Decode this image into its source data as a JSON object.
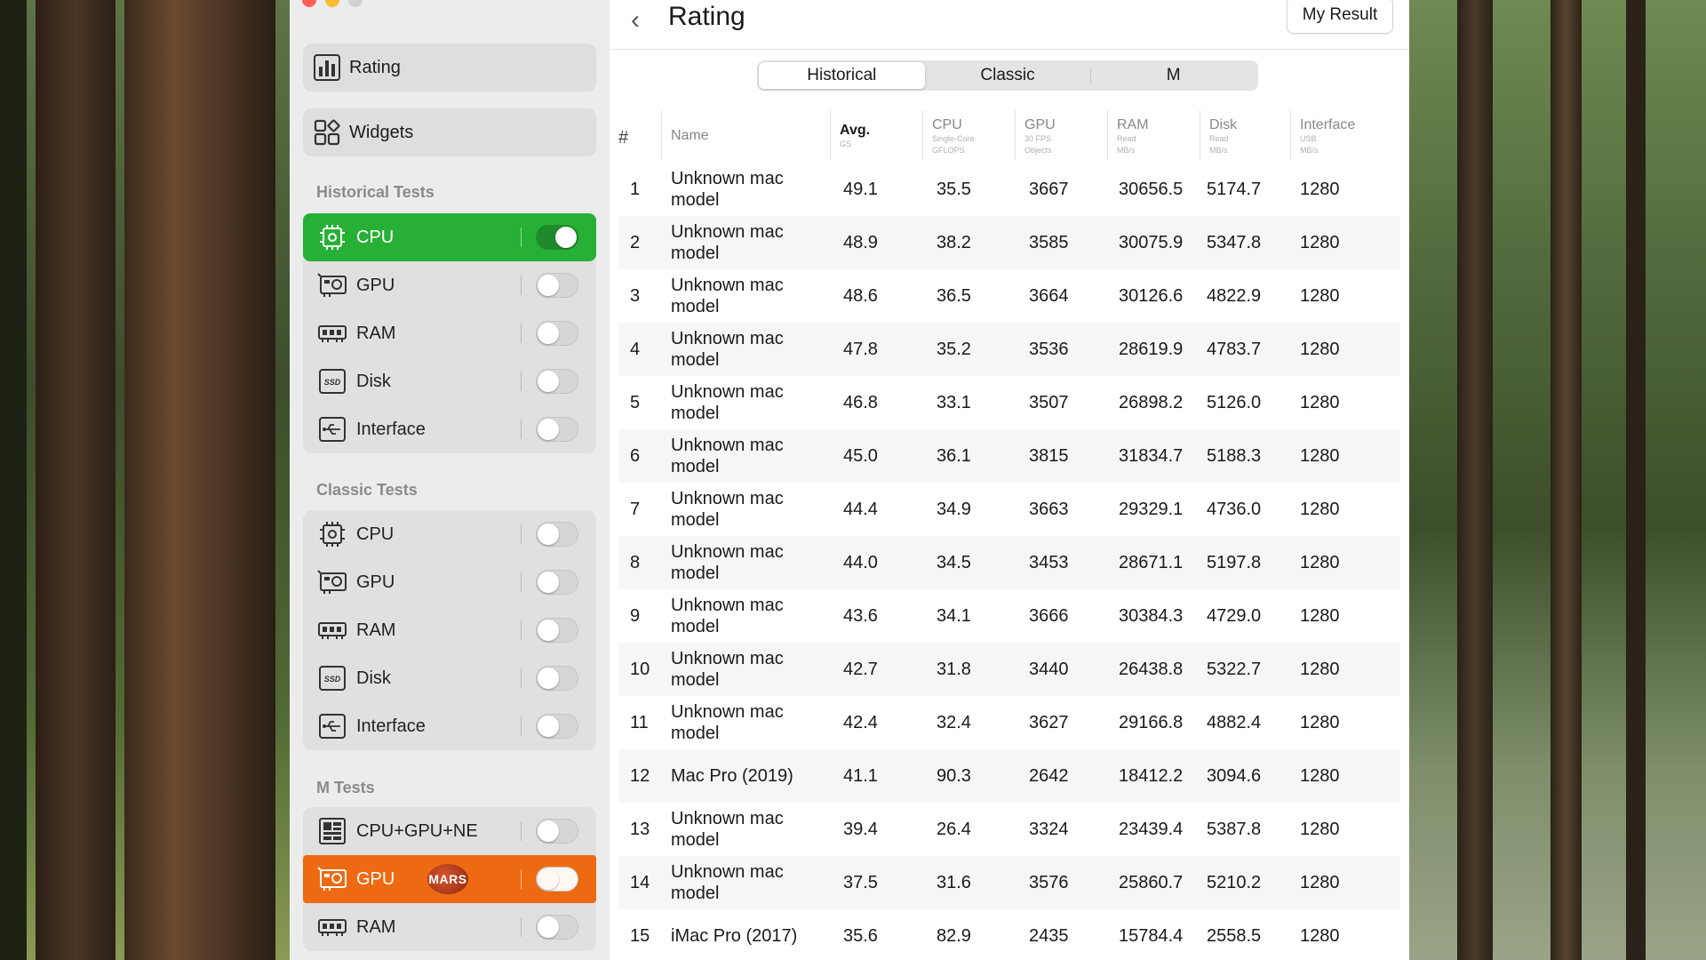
{
  "window": {
    "title": "Rating"
  },
  "sidebar": {
    "nav": [
      {
        "label": "Rating",
        "icon": "bar-chart-icon"
      },
      {
        "label": "Widgets",
        "icon": "widgets-grid-icon"
      }
    ],
    "sections": [
      {
        "title": "Historical Tests",
        "items": [
          {
            "label": "CPU",
            "icon": "cpu-icon",
            "on": true
          },
          {
            "label": "GPU",
            "icon": "gpu-icon",
            "on": false
          },
          {
            "label": "RAM",
            "icon": "ram-icon",
            "on": false
          },
          {
            "label": "Disk",
            "icon": "ssd-icon",
            "on": false
          },
          {
            "label": "Interface",
            "icon": "usb-icon",
            "on": false
          }
        ]
      },
      {
        "title": "Classic Tests",
        "items": [
          {
            "label": "CPU",
            "icon": "cpu-icon",
            "on": false
          },
          {
            "label": "GPU",
            "icon": "gpu-icon",
            "on": false
          },
          {
            "label": "RAM",
            "icon": "ram-icon",
            "on": false
          },
          {
            "label": "Disk",
            "icon": "ssd-icon",
            "on": false
          },
          {
            "label": "Interface",
            "icon": "usb-icon",
            "on": false
          }
        ]
      },
      {
        "title": "M Tests",
        "items": [
          {
            "label": "CPU+GPU+NE",
            "icon": "chip-grid-icon",
            "on": false
          },
          {
            "label": "GPU",
            "icon": "gpu-icon",
            "on": false,
            "badge": "MARS"
          },
          {
            "label": "RAM",
            "icon": "ram-icon",
            "on": false
          }
        ]
      }
    ]
  },
  "header": {
    "back_label": "‹",
    "title": "Rating",
    "my_result": "My Result"
  },
  "tabs": [
    {
      "label": "Historical",
      "selected": true
    },
    {
      "label": "Classic",
      "selected": false
    },
    {
      "label": "M",
      "selected": false
    }
  ],
  "columns": {
    "hash": "#",
    "name": "Name",
    "avg": {
      "label": "Avg.",
      "sub": "GS"
    },
    "cpu": {
      "label": "CPU",
      "sub1": "Single-Core",
      "sub2": "GFLOPS"
    },
    "gpu": {
      "label": "GPU",
      "sub1": "30 FPS",
      "sub2": "Objects"
    },
    "ram": {
      "label": "RAM",
      "sub1": "Read",
      "sub2": "MB/s"
    },
    "disk": {
      "label": "Disk",
      "sub1": "Read",
      "sub2": "MB/s"
    },
    "iface": {
      "label": "Interface",
      "sub1": "USB",
      "sub2": "MB/s"
    }
  },
  "rows": [
    {
      "n": "1",
      "name": "Unknown mac model",
      "avg": "49.1",
      "cpu": "35.5",
      "gpu": "3667",
      "ram": "30656.5",
      "disk": "5174.7",
      "iface": "1280"
    },
    {
      "n": "2",
      "name": "Unknown mac model",
      "avg": "48.9",
      "cpu": "38.2",
      "gpu": "3585",
      "ram": "30075.9",
      "disk": "5347.8",
      "iface": "1280"
    },
    {
      "n": "3",
      "name": "Unknown mac model",
      "avg": "48.6",
      "cpu": "36.5",
      "gpu": "3664",
      "ram": "30126.6",
      "disk": "4822.9",
      "iface": "1280"
    },
    {
      "n": "4",
      "name": "Unknown mac model",
      "avg": "47.8",
      "cpu": "35.2",
      "gpu": "3536",
      "ram": "28619.9",
      "disk": "4783.7",
      "iface": "1280"
    },
    {
      "n": "5",
      "name": "Unknown mac model",
      "avg": "46.8",
      "cpu": "33.1",
      "gpu": "3507",
      "ram": "26898.2",
      "disk": "5126.0",
      "iface": "1280"
    },
    {
      "n": "6",
      "name": "Unknown mac model",
      "avg": "45.0",
      "cpu": "36.1",
      "gpu": "3815",
      "ram": "31834.7",
      "disk": "5188.3",
      "iface": "1280"
    },
    {
      "n": "7",
      "name": "Unknown mac model",
      "avg": "44.4",
      "cpu": "34.9",
      "gpu": "3663",
      "ram": "29329.1",
      "disk": "4736.0",
      "iface": "1280"
    },
    {
      "n": "8",
      "name": "Unknown mac model",
      "avg": "44.0",
      "cpu": "34.5",
      "gpu": "3453",
      "ram": "28671.1",
      "disk": "5197.8",
      "iface": "1280"
    },
    {
      "n": "9",
      "name": "Unknown mac model",
      "avg": "43.6",
      "cpu": "34.1",
      "gpu": "3666",
      "ram": "30384.3",
      "disk": "4729.0",
      "iface": "1280"
    },
    {
      "n": "10",
      "name": "Unknown mac model",
      "avg": "42.7",
      "cpu": "31.8",
      "gpu": "3440",
      "ram": "26438.8",
      "disk": "5322.7",
      "iface": "1280"
    },
    {
      "n": "11",
      "name": "Unknown mac model",
      "avg": "42.4",
      "cpu": "32.4",
      "gpu": "3627",
      "ram": "29166.8",
      "disk": "4882.4",
      "iface": "1280"
    },
    {
      "n": "12",
      "name": "Mac Pro (2019)",
      "avg": "41.1",
      "cpu": "90.3",
      "gpu": "2642",
      "ram": "18412.2",
      "disk": "3094.6",
      "iface": "1280"
    },
    {
      "n": "13",
      "name": "Unknown mac model",
      "avg": "39.4",
      "cpu": "26.4",
      "gpu": "3324",
      "ram": "23439.4",
      "disk": "5387.8",
      "iface": "1280"
    },
    {
      "n": "14",
      "name": "Unknown mac model",
      "avg": "37.5",
      "cpu": "31.6",
      "gpu": "3576",
      "ram": "25860.7",
      "disk": "5210.2",
      "iface": "1280"
    },
    {
      "n": "15",
      "name": "iMac Pro (2017)",
      "avg": "35.6",
      "cpu": "82.9",
      "gpu": "2435",
      "ram": "15784.4",
      "disk": "2558.5",
      "iface": "1280"
    }
  ],
  "colors": {
    "active_green": "#27b036",
    "active_orange": "#ee6a12",
    "sidebar_bg": "#ececec"
  }
}
